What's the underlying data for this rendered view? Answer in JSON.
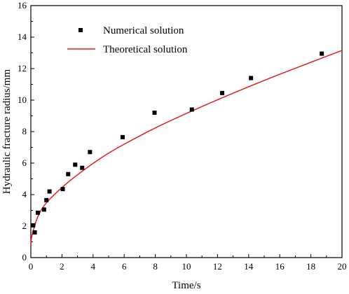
{
  "chart_data": {
    "type": "scatter",
    "title": "",
    "xlabel": "Time/s",
    "ylabel": "Hydraulic fracture radius/mm",
    "xlim": [
      0,
      20
    ],
    "ylim": [
      0,
      16
    ],
    "xticks": [
      "0",
      "2",
      "4",
      "6",
      "8",
      "10",
      "12",
      "14",
      "16",
      "18",
      "20"
    ],
    "yticks": [
      "0",
      "2",
      "4",
      "6",
      "8",
      "10",
      "12",
      "14",
      "16"
    ],
    "grid": false,
    "legend_position": "top-left",
    "series": [
      {
        "name": "Numerical solution",
        "kind": "markers",
        "marker": "square",
        "color": "#000000",
        "x": [
          0.15,
          0.25,
          0.45,
          0.85,
          1.0,
          1.2,
          2.05,
          2.4,
          2.85,
          3.3,
          3.8,
          5.9,
          7.95,
          10.35,
          12.3,
          14.15,
          18.7
        ],
        "y": [
          2.05,
          1.6,
          2.85,
          3.05,
          3.65,
          4.2,
          4.35,
          5.3,
          5.9,
          5.7,
          6.7,
          7.65,
          9.2,
          9.4,
          10.45,
          11.4,
          12.95
        ]
      },
      {
        "name": "Theoretical solution",
        "kind": "line",
        "color": "#e02020",
        "x": [
          0,
          0.05,
          0.2,
          0.5,
          1,
          2,
          3,
          4,
          5,
          6,
          8,
          10,
          12,
          14,
          16,
          18,
          20
        ],
        "y": [
          0.8,
          1.28,
          1.87,
          2.71,
          3.48,
          4.45,
          5.26,
          5.98,
          6.63,
          7.2,
          8.23,
          9.15,
          10.02,
          10.85,
          11.64,
          12.4,
          13.15
        ]
      }
    ]
  }
}
